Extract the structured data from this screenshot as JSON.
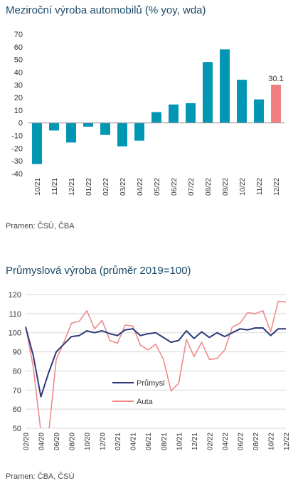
{
  "chart_data": [
    {
      "type": "bar",
      "title": "Meziroční výroba automobilů (% yoy, wda)",
      "categories": [
        "10/21",
        "11/21",
        "12/21",
        "01/22",
        "02/22",
        "03/22",
        "04/22",
        "05/22",
        "06/22",
        "07/22",
        "08/22",
        "09/22",
        "10/22",
        "11/22",
        "12/22"
      ],
      "values": [
        -32.5,
        -6,
        -15.5,
        -3,
        -9.5,
        -18.5,
        -14,
        8.5,
        14.5,
        15.5,
        48,
        58,
        34,
        18.5,
        30.1
      ],
      "data_labels": [
        "",
        "",
        "",
        "",
        "",
        "",
        "",
        "",
        "",
        "",
        "",
        "",
        "",
        "",
        "30.1"
      ],
      "colors": [
        "#0096b4",
        "#0096b4",
        "#0096b4",
        "#0096b4",
        "#0096b4",
        "#0096b4",
        "#0096b4",
        "#0096b4",
        "#0096b4",
        "#0096b4",
        "#0096b4",
        "#0096b4",
        "#0096b4",
        "#0096b4",
        "#f08080"
      ],
      "yticks": [
        70,
        60,
        50,
        40,
        30,
        20,
        10,
        0,
        -10,
        -20,
        -30,
        -40
      ],
      "ylim": [
        -40,
        70
      ],
      "grid": false,
      "source": "Pramen: ČSÚ, ČBA"
    },
    {
      "type": "line",
      "title": "Průmyslová výroba (průměr 2019=100)",
      "x": [
        "02/20",
        "03/20",
        "04/20",
        "05/20",
        "06/20",
        "07/20",
        "08/20",
        "09/20",
        "10/20",
        "11/20",
        "12/20",
        "01/21",
        "02/21",
        "03/21",
        "04/21",
        "05/21",
        "06/21",
        "07/21",
        "08/21",
        "09/21",
        "10/21",
        "11/21",
        "12/21",
        "01/22",
        "02/22",
        "03/22",
        "04/22",
        "05/22",
        "06/22",
        "07/22",
        "08/22",
        "09/22",
        "10/22",
        "11/22",
        "12/22"
      ],
      "xticks": [
        "02/20",
        "04/20",
        "06/20",
        "08/20",
        "10/20",
        "12/20",
        "02/21",
        "04/21",
        "06/21",
        "08/21",
        "10/21",
        "12/21",
        "02/22",
        "04/22",
        "06/22",
        "08/22",
        "10/22",
        "12/22"
      ],
      "series": [
        {
          "name": "Průmysl",
          "color": "#2e3a7a",
          "values": [
            103,
            88,
            66.5,
            79,
            90,
            94,
            98,
            98.5,
            101,
            100,
            101,
            99.5,
            98.5,
            101.5,
            102,
            98.5,
            99.5,
            100,
            97.5,
            95,
            96,
            101,
            97,
            100.5,
            97.5,
            100,
            98,
            100,
            102,
            101.5,
            102.5,
            102.5,
            98.5,
            102,
            102
          ]
        },
        {
          "name": "Auta",
          "color": "#f08a8a",
          "values": [
            103.5,
            82,
            48,
            47,
            86,
            95,
            105,
            106,
            111.5,
            102,
            106.5,
            96,
            94.5,
            104,
            103.5,
            93.5,
            91,
            94,
            86,
            69.5,
            73.5,
            96.5,
            87.5,
            95,
            86,
            86.5,
            91,
            103,
            105,
            110.5,
            110,
            111.5,
            100.5,
            116.5,
            116
          ]
        }
      ],
      "yticks": [
        120,
        110,
        100,
        90,
        80,
        70,
        60,
        50
      ],
      "ylim": [
        50,
        120
      ],
      "grid": true,
      "legend": "center",
      "source": "Pramen: ČBA, ČSÚ"
    }
  ]
}
